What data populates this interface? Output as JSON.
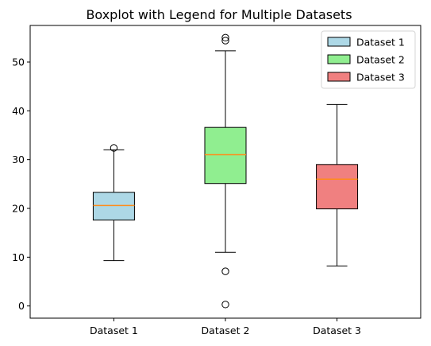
{
  "chart_data": {
    "type": "boxplot",
    "title": "Boxplot with Legend for Multiple Datasets",
    "xlabel": "",
    "ylabel": "",
    "categories": [
      "Dataset 1",
      "Dataset 2",
      "Dataset 3"
    ],
    "ylim": [
      -2.5,
      57.5
    ],
    "yticks": [
      0,
      10,
      20,
      30,
      40,
      50
    ],
    "grid": false,
    "legend_position": "top-right",
    "series": [
      {
        "name": "Dataset 1",
        "color": "#add8e6",
        "whisker_low": 9.3,
        "q1": 17.6,
        "median": 20.6,
        "q3": 23.3,
        "whisker_high": 32.0,
        "outliers": [
          32.4
        ]
      },
      {
        "name": "Dataset 2",
        "color": "#90ee90",
        "whisker_low": 11.0,
        "q1": 25.1,
        "median": 31.0,
        "q3": 36.6,
        "whisker_high": 52.3,
        "outliers": [
          0.3,
          7.1,
          54.4,
          55.0
        ]
      },
      {
        "name": "Dataset 3",
        "color": "#f08080",
        "whisker_low": 8.2,
        "q1": 19.9,
        "median": 26.0,
        "q3": 29.0,
        "whisker_high": 41.3,
        "outliers": []
      }
    ],
    "median_color": "#ff8c1a"
  }
}
